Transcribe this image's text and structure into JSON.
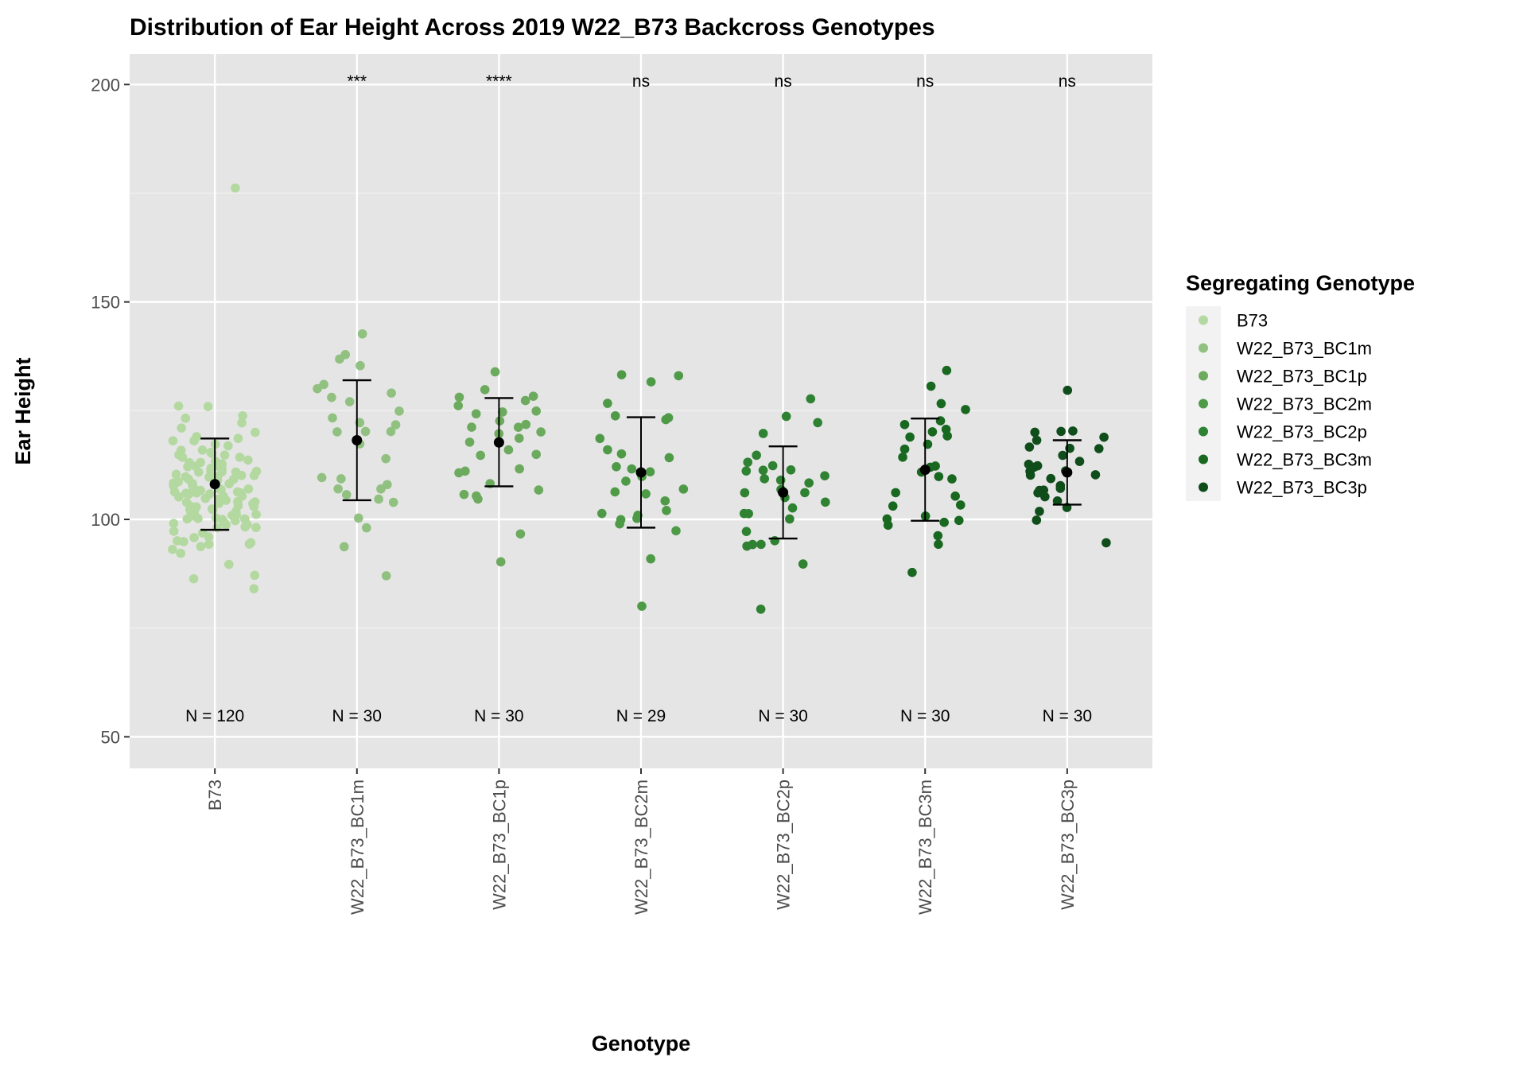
{
  "chart_data": {
    "type": "scatter",
    "title": "Distribution of Ear Height Across 2019 W22_B73 Backcross Genotypes",
    "xlabel": "Genotype",
    "ylabel": "Ear Height",
    "ylim": [
      42.75,
      207
    ],
    "yticks": [
      50,
      100,
      150,
      200
    ],
    "grid": true,
    "categories": [
      "B73",
      "W22_B73_BC1m",
      "W22_B73_BC1p",
      "W22_B73_BC2m",
      "W22_B73_BC2p",
      "W22_B73_BC3m",
      "W22_B73_BC3p"
    ],
    "colors": [
      "#b3d9a0",
      "#91c180",
      "#6caa5e",
      "#4e9a47",
      "#2f8232",
      "#186820",
      "#0f4d1b"
    ],
    "legend": {
      "title": "Segregating Genotype",
      "position": "right"
    },
    "significance_labels": [
      "",
      "***",
      "****",
      "ns",
      "ns",
      "ns",
      "ns"
    ],
    "significance_y": 201,
    "n_labels": [
      "N = 120",
      "N = 30",
      "N = 30",
      "N = 29",
      "N = 30",
      "N = 30",
      "N = 30"
    ],
    "n_label_y": 55,
    "summary": [
      {
        "mean": 108.1,
        "lower": 97.6,
        "upper": 118.6
      },
      {
        "mean": 118.2,
        "lower": 104.4,
        "upper": 132.0
      },
      {
        "mean": 117.7,
        "lower": 107.6,
        "upper": 127.9
      },
      {
        "mean": 110.8,
        "lower": 98.1,
        "upper": 123.5
      },
      {
        "mean": 106.2,
        "lower": 95.6,
        "upper": 116.8
      },
      {
        "mean": 111.4,
        "lower": 99.7,
        "upper": 123.2
      },
      {
        "mean": 110.8,
        "lower": 103.4,
        "upper": 118.2
      }
    ],
    "series": [
      {
        "name": "B73",
        "values": [
          176,
          126,
          126,
          124,
          123,
          122,
          121,
          120,
          119,
          119,
          118,
          118,
          117,
          117,
          116,
          116,
          115,
          115,
          115,
          114,
          114,
          114,
          113,
          113,
          113,
          112,
          112,
          112,
          112,
          111,
          111,
          111,
          111,
          111,
          110,
          110,
          110,
          110,
          110,
          109,
          109,
          109,
          109,
          109,
          108,
          108,
          108,
          108,
          108,
          107,
          107,
          107,
          107,
          107,
          106,
          106,
          106,
          106,
          106,
          106,
          105,
          105,
          105,
          105,
          105,
          104,
          104,
          104,
          104,
          104,
          103,
          103,
          103,
          103,
          103,
          102,
          102,
          102,
          102,
          101,
          101,
          101,
          101,
          100,
          100,
          100,
          100,
          100,
          99,
          99,
          99,
          99,
          98,
          98,
          98,
          97,
          97,
          96,
          96,
          95,
          95,
          95,
          94,
          94,
          94,
          93,
          92,
          90,
          87,
          86,
          84,
          113,
          112,
          110,
          108,
          106,
          104,
          102,
          100,
          115
        ]
      },
      {
        "name": "W22_B73_BC1m",
        "values": [
          143,
          138,
          137,
          135,
          131,
          130,
          129,
          128,
          127,
          125,
          123,
          122,
          122,
          120,
          120,
          117,
          114,
          109,
          108,
          107,
          107,
          106,
          105,
          104,
          100,
          98,
          94,
          87,
          120,
          110
        ]
      },
      {
        "name": "W22_B73_BC1p",
        "values": [
          134,
          130,
          128,
          128,
          127,
          126,
          125,
          124,
          123,
          122,
          121,
          120,
          120,
          119,
          118,
          116,
          115,
          115,
          112,
          111,
          111,
          108,
          107,
          106,
          105,
          105,
          97,
          90,
          125,
          121
        ]
      },
      {
        "name": "W22_B73_BC2m",
        "values": [
          133,
          133,
          132,
          127,
          124,
          123,
          123,
          119,
          116,
          115,
          114,
          112,
          112,
          111,
          110,
          109,
          107,
          106,
          106,
          104,
          101,
          101,
          100,
          100,
          99,
          97,
          91,
          80,
          102
        ]
      },
      {
        "name": "W22_B73_BC2p",
        "values": [
          128,
          124,
          122,
          120,
          115,
          113,
          112,
          111,
          111,
          111,
          110,
          109,
          109,
          107,
          106,
          105,
          104,
          103,
          101,
          101,
          100,
          97,
          95,
          94,
          94,
          94,
          90,
          79,
          108,
          106
        ]
      },
      {
        "name": "W22_B73_BC3m",
        "values": [
          134,
          131,
          127,
          125,
          123,
          122,
          121,
          120,
          119,
          119,
          117,
          116,
          114,
          112,
          112,
          110,
          109,
          106,
          105,
          103,
          103,
          101,
          100,
          100,
          99,
          99,
          96,
          94,
          88,
          111
        ]
      },
      {
        "name": "W22_B73_BC3p",
        "values": [
          130,
          120,
          120,
          120,
          119,
          118,
          117,
          116,
          116,
          115,
          113,
          113,
          112,
          112,
          111,
          111,
          110,
          110,
          109,
          108,
          107,
          107,
          107,
          106,
          105,
          104,
          103,
          102,
          100,
          95
        ]
      }
    ]
  }
}
